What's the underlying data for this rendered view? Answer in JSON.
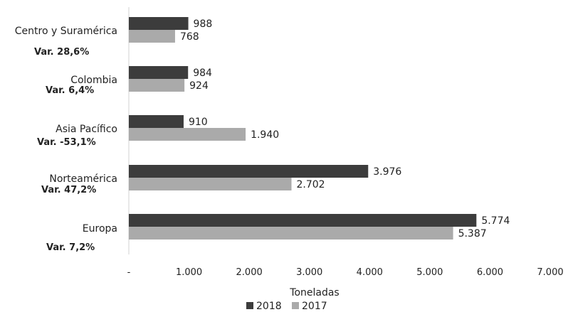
{
  "chart_data": {
    "type": "bar",
    "orientation": "horizontal",
    "categories": [
      "Centro y Suramérica",
      "Colombia",
      "Asia Pacífico",
      "Norteamérica",
      "Europa"
    ],
    "variation_labels": [
      "Var. 28,6%",
      "Var. 6,4%",
      "Var. -53,1%",
      "Var. 47,2%",
      "Var. 7,2%"
    ],
    "series": [
      {
        "name": "2018",
        "values": [
          988,
          984,
          910,
          3976,
          5774
        ],
        "labels": [
          "988",
          "984",
          "910",
          "3.976",
          "5.774"
        ],
        "color": "#3c3c3c"
      },
      {
        "name": "2017",
        "values": [
          768,
          924,
          1940,
          2702,
          5387
        ],
        "labels": [
          "768",
          "924",
          "1.940",
          "2.702",
          "5.387"
        ],
        "color": "#aaaaaa"
      }
    ],
    "xlim": [
      0,
      7000
    ],
    "xticks": [
      0,
      1000,
      2000,
      3000,
      4000,
      5000,
      6000,
      7000
    ],
    "xtick_labels": [
      "-",
      "1.000",
      "2.000",
      "3.000",
      "4.000",
      "5.000",
      "6.000",
      "7.000"
    ],
    "xlabel": "Toneladas",
    "ylabel": "",
    "title": "",
    "legend_position": "bottom",
    "grid": false
  }
}
